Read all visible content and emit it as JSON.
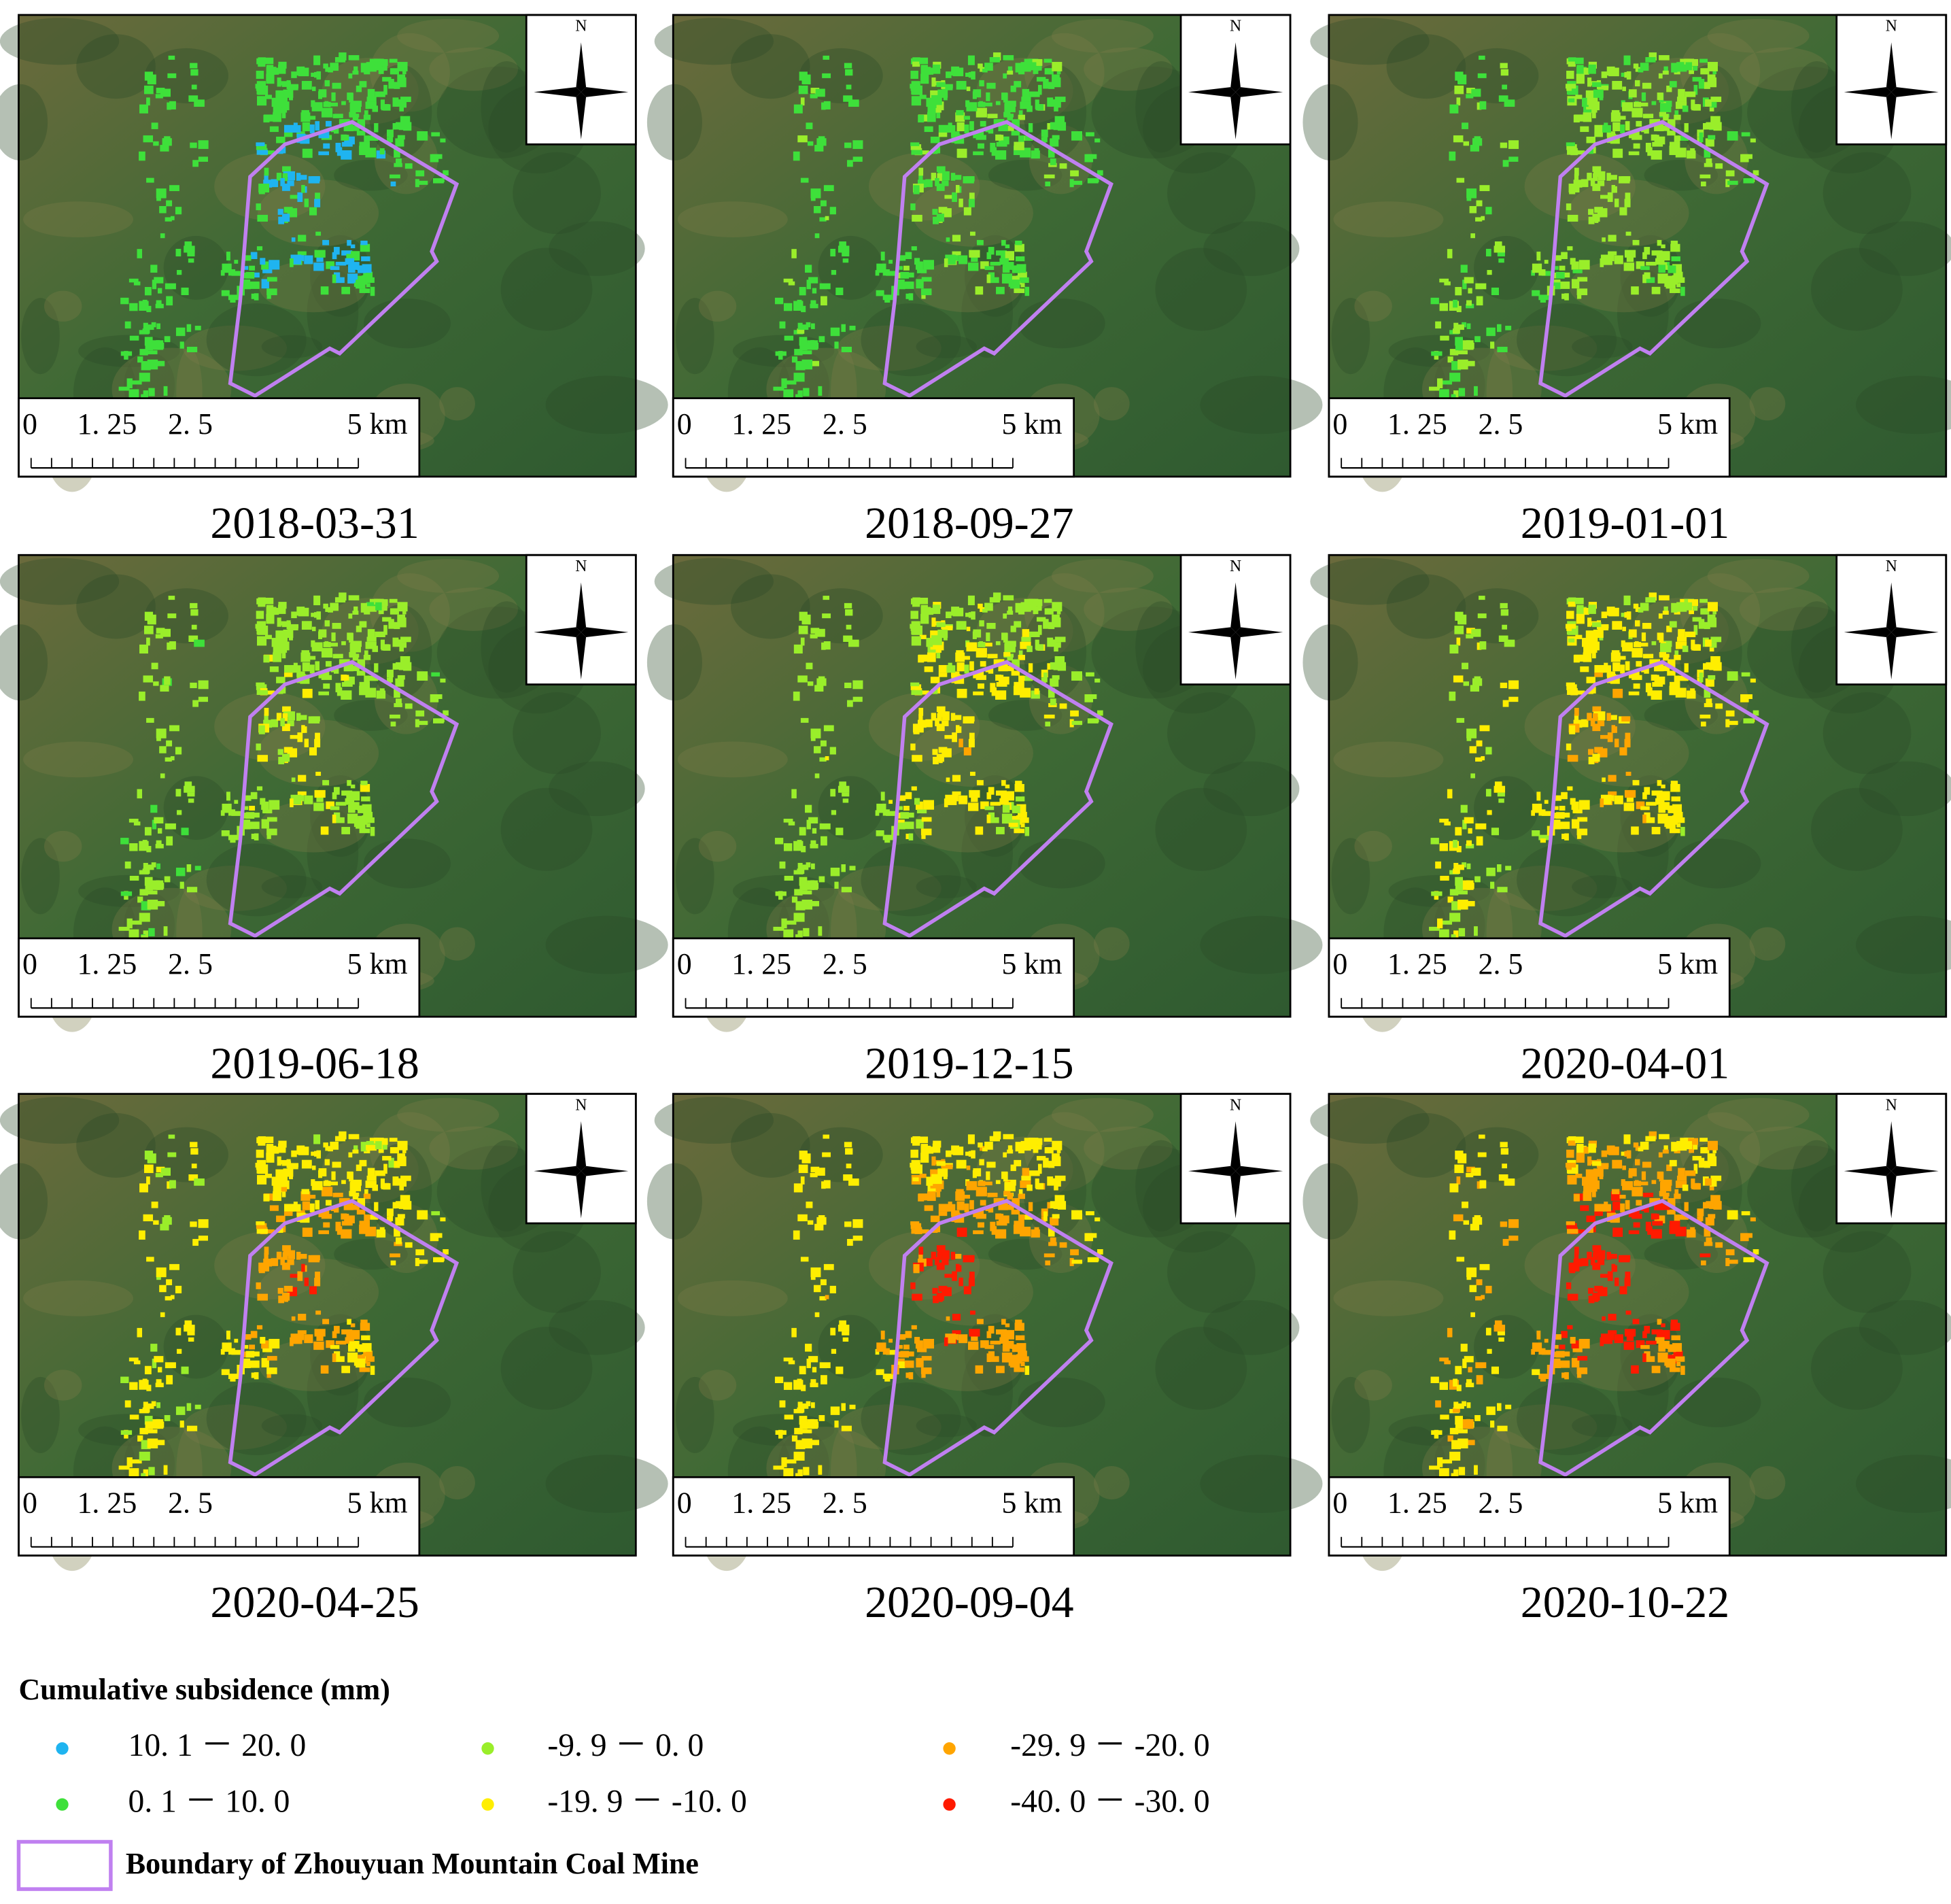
{
  "panels": [
    {
      "date": "2018-03-31"
    },
    {
      "date": "2018-09-27"
    },
    {
      "date": "2019-01-01"
    },
    {
      "date": "2019-06-18"
    },
    {
      "date": "2019-12-15"
    },
    {
      "date": "2020-04-01"
    },
    {
      "date": "2020-04-25"
    },
    {
      "date": "2020-09-04"
    },
    {
      "date": "2020-10-22"
    }
  ],
  "north_label": "N",
  "scale_bar": {
    "labels": [
      "0",
      "1. 25",
      "2. 5",
      "5 km"
    ]
  },
  "legend": {
    "title": "Cumulative subsidence (mm)",
    "items": [
      {
        "label": "10. 1 － 20. 0",
        "color": "#1fb4f0"
      },
      {
        "label": "0. 1 － 10. 0",
        "color": "#3ee03a"
      },
      {
        "label": "-9. 9 － 0. 0",
        "color": "#9aee2a"
      },
      {
        "label": "-19. 9 － -10. 0",
        "color": "#ffee00"
      },
      {
        "label": "-29. 9 － -20. 0",
        "color": "#ffa500"
      },
      {
        "label": "-40. 0 － -30. 0",
        "color": "#ff1a00"
      }
    ],
    "boundary": {
      "label": "Boundary of Zhouyuan Mountain Coal Mine",
      "color": "#c080f0"
    }
  }
}
